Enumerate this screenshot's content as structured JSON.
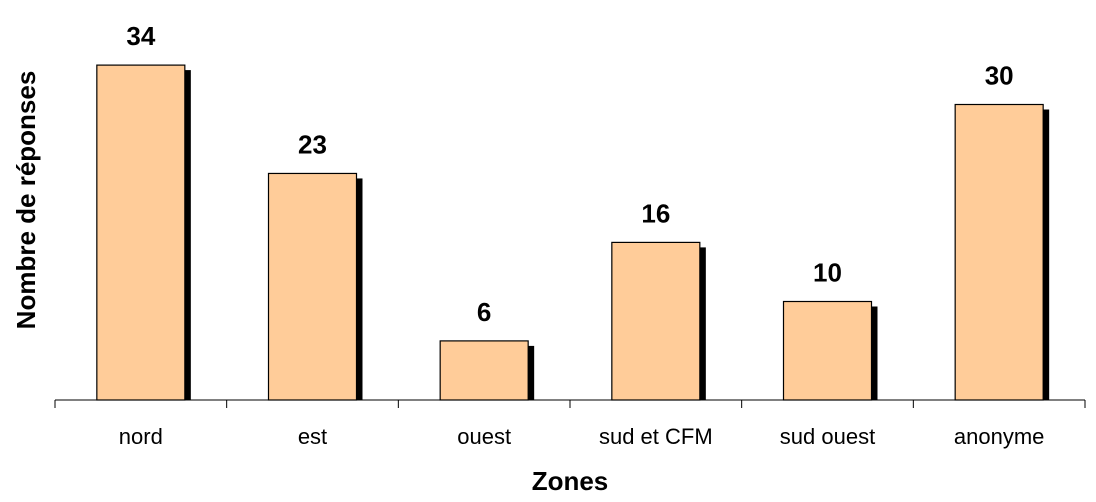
{
  "chart_data": {
    "type": "bar",
    "categories": [
      "nord",
      "est",
      "ouest",
      "sud et CFM",
      "sud ouest",
      "anonyme"
    ],
    "values": [
      34,
      23,
      6,
      16,
      10,
      30
    ],
    "data_labels": [
      "34",
      "23",
      "6",
      "16",
      "10",
      "30"
    ],
    "xlabel": "Zones",
    "ylabel": "Nombre de réponses",
    "ylim": [
      0,
      34
    ],
    "grid": false,
    "legend": "none",
    "colors": {
      "bar_fill": "#FFCC99",
      "bar_stroke": "#000000",
      "bar_shadow": "#000000",
      "axis": "#000000"
    }
  }
}
